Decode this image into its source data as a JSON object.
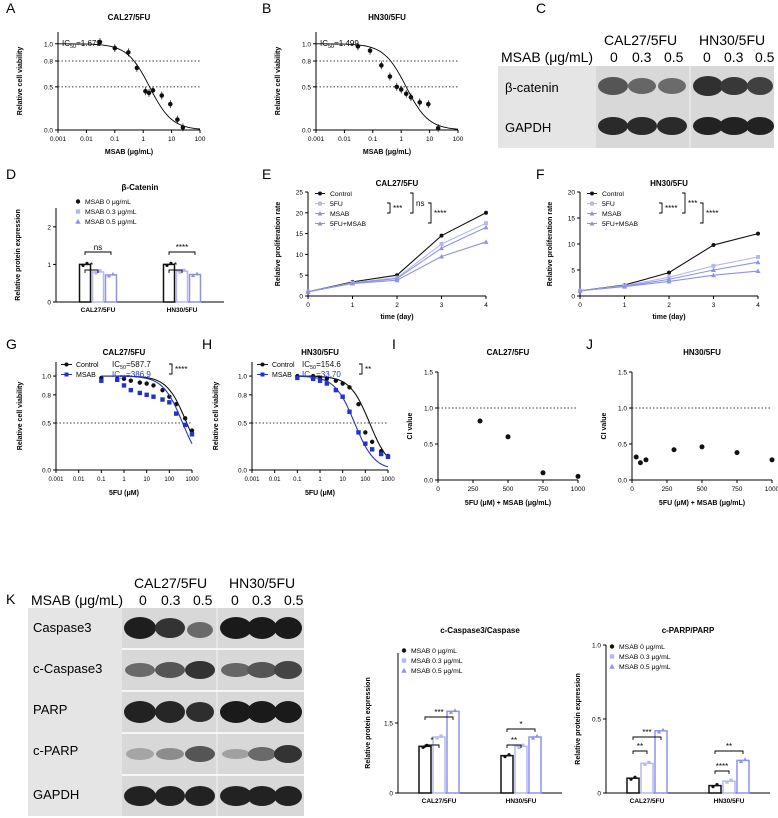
{
  "panel_letters": [
    "A",
    "B",
    "C",
    "D",
    "E",
    "F",
    "G",
    "H",
    "I",
    "J",
    "K"
  ],
  "colors": {
    "black": "#111111",
    "light": "#b6b9ef",
    "mid": "#8d92ea",
    "blue": "#2233cc"
  },
  "panel_C": {
    "title_left": "CAL27/5FU",
    "title_right": "HN30/5FU",
    "dose_header": "MSAB (μg/mL)",
    "doses": [
      "0",
      "0.3",
      "0.5"
    ],
    "rows": [
      "β-catenin",
      "GAPDH"
    ]
  },
  "panel_K": {
    "title_left": "CAL27/5FU",
    "title_right": "HN30/5FU",
    "dose_header": "MSAB (μg/mL)",
    "doses": [
      "0",
      "0.3",
      "0.5"
    ],
    "rows": [
      "Caspase3",
      "c-Caspase3",
      "PARP",
      "c-PARP",
      "GAPDH"
    ]
  },
  "chart_data": [
    {
      "panel": "A",
      "type": "scatter",
      "title": "CAL27/5FU",
      "xlabel": "MSAB (μg/mL)",
      "ylabel": "Relative cell viability",
      "xscale": "log",
      "xlim": [
        0.001,
        100
      ],
      "ylim": [
        0,
        1.0
      ],
      "xticks": [
        "0.001",
        "0.01",
        "0.1",
        "1",
        "10",
        "100"
      ],
      "yticks": [
        "0.0",
        "0.5",
        "0.8",
        "1.0"
      ],
      "annotation": "IC50=1.679",
      "ref_lines": [
        0.5,
        0.8
      ],
      "points": [
        [
          0.03,
          1.02
        ],
        [
          0.1,
          0.95
        ],
        [
          0.3,
          0.9
        ],
        [
          0.6,
          0.72
        ],
        [
          1.2,
          0.45
        ],
        [
          1.6,
          0.43
        ],
        [
          2.2,
          0.46
        ],
        [
          4.5,
          0.4
        ],
        [
          9,
          0.3
        ],
        [
          16,
          0.12
        ],
        [
          25,
          0.03
        ]
      ],
      "curve_ic50": 1.679
    },
    {
      "panel": "B",
      "type": "scatter",
      "title": "HN30/5FU",
      "xlabel": "MSAB (μg/mL)",
      "ylabel": "Relative cell viability",
      "xscale": "log",
      "xlim": [
        0.001,
        100
      ],
      "ylim": [
        0,
        1.0
      ],
      "xticks": [
        "0.001",
        "0.01",
        "0.1",
        "1",
        "10",
        "100"
      ],
      "yticks": [
        "0.0",
        "0.5",
        "0.8",
        "1.0"
      ],
      "annotation": "IC50=1.499",
      "ref_lines": [
        0.5,
        0.8
      ],
      "points": [
        [
          0.03,
          0.97
        ],
        [
          0.08,
          0.92
        ],
        [
          0.2,
          0.75
        ],
        [
          0.4,
          0.62
        ],
        [
          0.7,
          0.5
        ],
        [
          1.0,
          0.47
        ],
        [
          1.5,
          0.42
        ],
        [
          2.2,
          0.38
        ],
        [
          4.5,
          0.32
        ],
        [
          9,
          0.3
        ],
        [
          20,
          0.02
        ]
      ],
      "curve_ic50": 1.499
    },
    {
      "panel": "D",
      "type": "bar",
      "title": "β-Catenin",
      "ylabel": "Relative protein expression",
      "ylim": [
        0,
        2.5
      ],
      "yticks": [
        "0",
        "1",
        "2"
      ],
      "categories": [
        "CAL27/5FU",
        "HN30/5FU"
      ],
      "series": [
        {
          "name": "MSAB 0 μg/mL",
          "values": [
            1.0,
            1.0
          ]
        },
        {
          "name": "MSAB 0.3 μg/mL",
          "values": [
            0.8,
            0.82
          ]
        },
        {
          "name": "MSAB 0.5 μg/mL",
          "values": [
            0.72,
            0.73
          ]
        }
      ],
      "significance": [
        "*",
        "ns",
        "*",
        "****"
      ]
    },
    {
      "panel": "E",
      "type": "line",
      "title": "CAL27/5FU",
      "xlabel": "time (day)",
      "ylabel": "Relative proliferation rate",
      "x": [
        0,
        1,
        2,
        3,
        4
      ],
      "xlim": [
        0,
        4
      ],
      "ylim": [
        0,
        25
      ],
      "yticks": [
        "0",
        "5",
        "10",
        "15",
        "20",
        "25"
      ],
      "series": [
        {
          "name": "Control",
          "values": [
            1,
            3.4,
            5,
            14.5,
            20
          ]
        },
        {
          "name": "5FU",
          "values": [
            1,
            3.2,
            4.4,
            12.5,
            17.5
          ]
        },
        {
          "name": "MSAB",
          "values": [
            1,
            3.1,
            4.2,
            11.5,
            16.5
          ]
        },
        {
          "name": "5FU+MSAB",
          "values": [
            1,
            3.0,
            3.8,
            9.5,
            13
          ]
        }
      ],
      "significance": [
        "***",
        "ns",
        "****"
      ]
    },
    {
      "panel": "F",
      "type": "line",
      "title": "HN30/5FU",
      "xlabel": "time (day)",
      "ylabel": "Relative proliferation rate",
      "x": [
        0,
        1,
        2,
        3,
        4
      ],
      "xlim": [
        0,
        4
      ],
      "ylim": [
        0,
        20
      ],
      "yticks": [
        "0",
        "5",
        "10",
        "15",
        "20"
      ],
      "series": [
        {
          "name": "Control",
          "values": [
            1,
            2.1,
            4.5,
            9.8,
            12
          ]
        },
        {
          "name": "5FU",
          "values": [
            1,
            2.0,
            3.6,
            5.8,
            7.5
          ]
        },
        {
          "name": "MSAB",
          "values": [
            1,
            1.9,
            3.2,
            5.0,
            6.5
          ]
        },
        {
          "name": "5FU+MSAB",
          "values": [
            1,
            1.8,
            2.8,
            4.0,
            4.8
          ]
        }
      ],
      "significance": [
        "****",
        "***",
        "****"
      ]
    },
    {
      "panel": "G",
      "type": "scatter",
      "title": "CAL27/5FU",
      "xlabel": "5FU (μM)",
      "ylabel": "Relative cell viability",
      "xscale": "log",
      "xlim": [
        0.001,
        1000
      ],
      "ylim": [
        0,
        1.0
      ],
      "xticks": [
        "0.001",
        "0.01",
        "0.1",
        "1",
        "10",
        "100",
        "1000"
      ],
      "yticks": [
        "0.0",
        "0.5",
        "0.8",
        "1.0"
      ],
      "ref_lines": [
        0.5
      ],
      "series": [
        {
          "name": "Control",
          "ic50": 587.7,
          "points": [
            [
              0.1,
              0.98
            ],
            [
              0.5,
              0.97
            ],
            [
              1,
              0.97
            ],
            [
              2,
              0.95
            ],
            [
              5,
              0.93
            ],
            [
              10,
              0.92
            ],
            [
              20,
              0.9
            ],
            [
              50,
              0.85
            ],
            [
              100,
              0.78
            ],
            [
              200,
              0.7
            ],
            [
              500,
              0.55
            ],
            [
              1000,
              0.42
            ]
          ]
        },
        {
          "name": "MSAB",
          "ic50": 386.9,
          "points": [
            [
              0.1,
              0.95
            ],
            [
              0.5,
              0.96
            ],
            [
              1,
              0.9
            ],
            [
              2,
              0.85
            ],
            [
              5,
              0.82
            ],
            [
              10,
              0.8
            ],
            [
              20,
              0.78
            ],
            [
              50,
              0.75
            ],
            [
              100,
              0.72
            ],
            [
              200,
              0.6
            ],
            [
              500,
              0.48
            ],
            [
              1000,
              0.38
            ]
          ]
        }
      ],
      "legend_text": [
        "IC50=587.7",
        "IC50=386.9"
      ],
      "significance": [
        "****"
      ]
    },
    {
      "panel": "H",
      "type": "scatter",
      "title": "HN30/5FU",
      "xlabel": "5FU (μM)",
      "ylabel": "Relative cell viability",
      "xscale": "log",
      "xlim": [
        0.001,
        1000
      ],
      "ylim": [
        0,
        1.0
      ],
      "xticks": [
        "0.001",
        "0.01",
        "0.1",
        "1",
        "10",
        "100",
        "1000"
      ],
      "yticks": [
        "0.0",
        "0.5",
        "0.8",
        "1.0"
      ],
      "ref_lines": [
        0.5
      ],
      "series": [
        {
          "name": "Control",
          "ic50": 154.6,
          "points": [
            [
              0.1,
              1.0
            ],
            [
              0.5,
              1.0
            ],
            [
              1,
              0.98
            ],
            [
              2,
              0.97
            ],
            [
              5,
              0.95
            ],
            [
              10,
              0.92
            ],
            [
              20,
              0.88
            ],
            [
              50,
              0.7
            ],
            [
              100,
              0.4
            ],
            [
              200,
              0.3
            ],
            [
              500,
              0.2
            ],
            [
              1000,
              0.15
            ]
          ]
        },
        {
          "name": "MSAB",
          "ic50": 33.7,
          "points": [
            [
              0.1,
              0.98
            ],
            [
              0.5,
              0.97
            ],
            [
              1,
              0.95
            ],
            [
              2,
              0.92
            ],
            [
              5,
              0.85
            ],
            [
              10,
              0.78
            ],
            [
              20,
              0.62
            ],
            [
              50,
              0.4
            ],
            [
              100,
              0.28
            ],
            [
              200,
              0.22
            ],
            [
              500,
              0.17
            ],
            [
              1000,
              0.14
            ]
          ]
        }
      ],
      "legend_text": [
        "IC50=154.6",
        "IC50=33.70"
      ],
      "significance": [
        "**"
      ]
    },
    {
      "panel": "I",
      "type": "scatter",
      "title": "CAL27/5FU",
      "xlabel": "5FU (μM) + MSAB (μg/mL)",
      "ylabel": "CI value",
      "xlim": [
        0,
        1000
      ],
      "ylim": [
        0,
        1.5
      ],
      "xticks": [
        "0",
        "250",
        "500",
        "750",
        "1000"
      ],
      "yticks": [
        "0.0",
        "0.5",
        "1.0",
        "1.5"
      ],
      "ref_lines": [
        1.0
      ],
      "points": [
        [
          300,
          0.82
        ],
        [
          500,
          0.6
        ],
        [
          750,
          0.1
        ],
        [
          1000,
          0.05
        ]
      ]
    },
    {
      "panel": "J",
      "type": "scatter",
      "title": "HN30/5FU",
      "xlabel": "5FU (μM) + MSAB (μg/mL)",
      "ylabel": "CI value",
      "xlim": [
        0,
        1000
      ],
      "ylim": [
        0,
        1.5
      ],
      "xticks": [
        "0",
        "250",
        "500",
        "750",
        "1000"
      ],
      "yticks": [
        "0.0",
        "0.5",
        "1.0",
        "1.5"
      ],
      "ref_lines": [
        1.0
      ],
      "points": [
        [
          30,
          0.32
        ],
        [
          60,
          0.24
        ],
        [
          100,
          0.28
        ],
        [
          300,
          0.42
        ],
        [
          500,
          0.46
        ],
        [
          750,
          0.38
        ],
        [
          1000,
          0.28
        ]
      ]
    },
    {
      "panel": "K1",
      "type": "bar",
      "title": "c-Caspase3/Caspase",
      "ylabel": "Relative protein expression",
      "ylim": [
        0,
        3.0
      ],
      "yticks": [
        "0",
        "1.5"
      ],
      "categories": [
        "CAL27/5FU",
        "HN30/5FU"
      ],
      "series": [
        {
          "name": "MSAB 0 μg/mL",
          "values": [
            1.0,
            0.8
          ]
        },
        {
          "name": "MSAB 0.3 μg/mL",
          "values": [
            1.2,
            1.0
          ]
        },
        {
          "name": "MSAB 0.5 μg/mL",
          "values": [
            1.75,
            1.2
          ]
        }
      ],
      "significance": [
        "*",
        "***",
        "**",
        "*"
      ]
    },
    {
      "panel": "K2",
      "type": "bar",
      "title": "c-PARP/PARP",
      "ylabel": "Relative protein expression",
      "ylim": [
        0,
        1.0
      ],
      "yticks": [
        "0",
        "0.5",
        "1.0"
      ],
      "categories": [
        "CAL27/5FU",
        "HN30/5FU"
      ],
      "series": [
        {
          "name": "MSAB 0 μg/mL",
          "values": [
            0.1,
            0.05
          ]
        },
        {
          "name": "MSAB 0.3 μg/mL",
          "values": [
            0.2,
            0.08
          ]
        },
        {
          "name": "MSAB 0.5 μg/mL",
          "values": [
            0.42,
            0.22
          ]
        }
      ],
      "significance": [
        "**",
        "***",
        "****",
        "**"
      ]
    }
  ]
}
